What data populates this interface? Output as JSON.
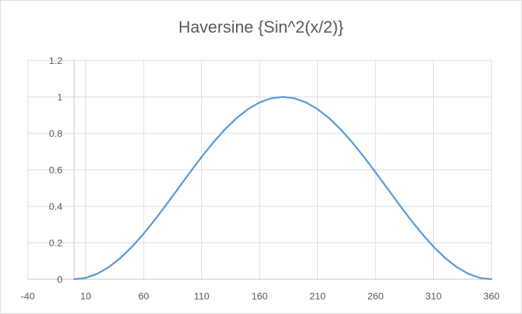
{
  "chart_data": {
    "type": "line",
    "title": "Haversine {Sin^2(x/2)}",
    "xlabel": "",
    "ylabel": "",
    "xlim": [
      -40,
      360
    ],
    "ylim": [
      0,
      1.2
    ],
    "x_ticks": [
      "-40",
      "10",
      "60",
      "110",
      "160",
      "210",
      "260",
      "310",
      "360"
    ],
    "y_ticks": [
      "0",
      "0.2",
      "0.4",
      "0.6",
      "0.8",
      "1",
      "1.2"
    ],
    "grid": true,
    "legend": "none",
    "series": [
      {
        "color": "#5b9bd5",
        "x": [
          0,
          10,
          20,
          30,
          40,
          50,
          60,
          70,
          80,
          90,
          100,
          110,
          120,
          130,
          140,
          150,
          160,
          170,
          180,
          190,
          200,
          210,
          220,
          230,
          240,
          250,
          260,
          270,
          280,
          290,
          300,
          310,
          320,
          330,
          340,
          350,
          360
        ],
        "y": [
          0,
          0.0076,
          0.0302,
          0.067,
          0.117,
          0.1786,
          0.25,
          0.329,
          0.4132,
          0.5,
          0.5868,
          0.671,
          0.75,
          0.8214,
          0.883,
          0.933,
          0.9698,
          0.9924,
          1,
          0.9924,
          0.9698,
          0.933,
          0.883,
          0.8214,
          0.75,
          0.671,
          0.5868,
          0.5,
          0.4132,
          0.329,
          0.25,
          0.1786,
          0.117,
          0.067,
          0.0302,
          0.0076,
          0
        ]
      }
    ]
  }
}
